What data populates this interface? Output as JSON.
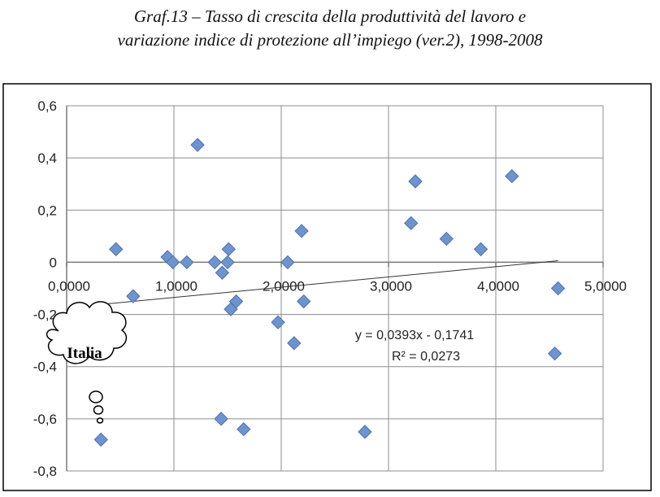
{
  "title_line1": "Graf.13 – Tasso di crescita della  produttività del lavoro e",
  "title_line2": "variazione indice di protezione all’impiego (ver.2), 1998-2008",
  "chart_data": {
    "type": "scatter",
    "xlim": [
      0,
      5
    ],
    "ylim": [
      -0.8,
      0.6
    ],
    "x_ticks": [
      "0,0000",
      "1,0000",
      "2,0000",
      "3,0000",
      "4,0000",
      "5,0000"
    ],
    "y_ticks": [
      "0,6",
      "0,4",
      "0,2",
      "0",
      "-0,2",
      "-0,4",
      "-0,6",
      "-0,8"
    ],
    "grid": true,
    "marker_color": "#6f94cd",
    "points": [
      {
        "x": 0.32,
        "y": -0.68
      },
      {
        "x": 0.46,
        "y": 0.05
      },
      {
        "x": 0.62,
        "y": -0.13
      },
      {
        "x": 0.94,
        "y": 0.02
      },
      {
        "x": 0.99,
        "y": 0.0
      },
      {
        "x": 1.12,
        "y": 0.0
      },
      {
        "x": 1.22,
        "y": 0.45
      },
      {
        "x": 1.38,
        "y": 0.0
      },
      {
        "x": 1.44,
        "y": -0.6
      },
      {
        "x": 1.45,
        "y": -0.04
      },
      {
        "x": 1.5,
        "y": 0.0
      },
      {
        "x": 1.51,
        "y": 0.05
      },
      {
        "x": 1.53,
        "y": -0.18
      },
      {
        "x": 1.58,
        "y": -0.15
      },
      {
        "x": 1.65,
        "y": -0.64
      },
      {
        "x": 1.97,
        "y": -0.23
      },
      {
        "x": 2.06,
        "y": 0.0
      },
      {
        "x": 2.12,
        "y": -0.31
      },
      {
        "x": 2.19,
        "y": 0.12
      },
      {
        "x": 2.21,
        "y": -0.15
      },
      {
        "x": 2.78,
        "y": -0.65
      },
      {
        "x": 3.21,
        "y": 0.15
      },
      {
        "x": 3.25,
        "y": 0.31
      },
      {
        "x": 3.54,
        "y": 0.09
      },
      {
        "x": 3.86,
        "y": 0.05
      },
      {
        "x": 4.15,
        "y": 0.33
      },
      {
        "x": 4.55,
        "y": -0.35
      },
      {
        "x": 4.58,
        "y": -0.1
      }
    ],
    "trendline": {
      "slope": 0.0393,
      "intercept": -0.1741,
      "x_range": [
        0.32,
        4.58
      ],
      "equation_label": "y = 0,0393x - 0,1741",
      "r2_label": "R² = 0,0273"
    },
    "annotation": {
      "label": "Italia",
      "points_to": {
        "x": 0.32,
        "y": -0.68
      }
    }
  }
}
